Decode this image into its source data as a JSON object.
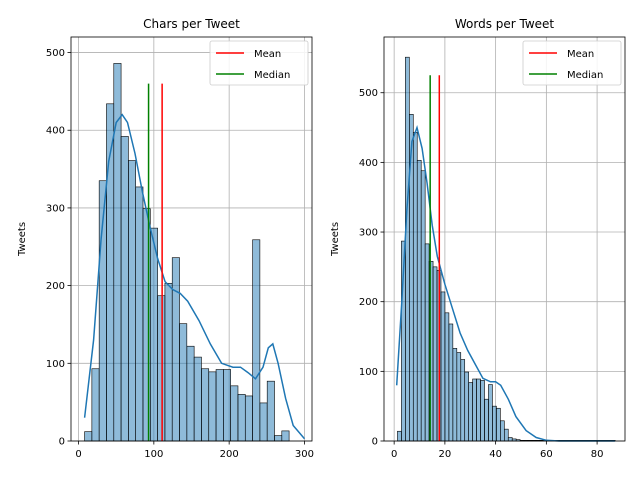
{
  "chart_data": [
    {
      "type": "histogram",
      "title": "Chars per Tweet",
      "xlabel": "",
      "ylabel": "Tweets",
      "xlim": [
        -10,
        310
      ],
      "ylim": [
        0,
        520
      ],
      "xticks": [
        0,
        100,
        200,
        300
      ],
      "yticks": [
        0,
        100,
        200,
        300,
        400,
        500
      ],
      "grid": true,
      "legend_position": "top-right",
      "bin_start": 8,
      "bin_width": 9.7,
      "values": [
        12,
        93,
        335,
        434,
        486,
        392,
        361,
        327,
        299,
        274,
        187,
        203,
        236,
        151,
        122,
        108,
        93,
        89,
        92,
        92,
        71,
        60,
        58,
        259,
        49,
        77,
        7,
        13
      ],
      "kde": {
        "x": [
          8,
          20,
          30,
          40,
          50,
          58,
          65,
          75,
          85,
          95,
          105,
          115,
          125,
          135,
          145,
          160,
          175,
          190,
          205,
          215,
          225,
          235,
          245,
          252,
          258,
          265,
          275,
          285,
          300
        ],
        "y": [
          30,
          130,
          260,
          360,
          410,
          420,
          410,
          370,
          320,
          275,
          235,
          205,
          195,
          190,
          180,
          155,
          125,
          100,
          95,
          95,
          88,
          80,
          95,
          120,
          125,
          100,
          55,
          20,
          3
        ]
      },
      "reference_lines": [
        {
          "name": "Mean",
          "x": 111,
          "ymax": 460,
          "color": "#ff0000"
        },
        {
          "name": "Median",
          "x": 93,
          "ymax": 460,
          "color": "#008000"
        }
      ],
      "bar_color": "#1f77b4",
      "line_color": "#1f77b4"
    },
    {
      "type": "histogram",
      "title": "Words per Tweet",
      "xlabel": "",
      "ylabel": "Tweets",
      "xlim": [
        -4,
        91
      ],
      "ylim": [
        0,
        580
      ],
      "xticks": [
        0,
        20,
        40,
        60,
        80
      ],
      "yticks": [
        0,
        100,
        200,
        300,
        400,
        500
      ],
      "grid": true,
      "legend_position": "top-right",
      "bin_start": 1.3,
      "bin_width": 1.56,
      "values": [
        14,
        287,
        551,
        469,
        443,
        403,
        388,
        283,
        258,
        250,
        245,
        214,
        184,
        168,
        133,
        127,
        117,
        99,
        84,
        89,
        89,
        87,
        60,
        81,
        50,
        47,
        29,
        17,
        5,
        3,
        2,
        1,
        1,
        1,
        1,
        1,
        1,
        1,
        1,
        1,
        1,
        1,
        1,
        1,
        1,
        1,
        1,
        1,
        1,
        1,
        1,
        1,
        1,
        1,
        1
      ],
      "kde": {
        "x": [
          1,
          3,
          5,
          7,
          9,
          11,
          13,
          15,
          17,
          20,
          23,
          26,
          29,
          32,
          35,
          38,
          40,
          42,
          45,
          48,
          52,
          56,
          60,
          65,
          70,
          80,
          87
        ],
        "y": [
          80,
          200,
          330,
          430,
          450,
          420,
          370,
          310,
          265,
          225,
          190,
          155,
          130,
          110,
          90,
          85,
          85,
          80,
          60,
          35,
          15,
          5,
          1,
          0,
          0,
          0,
          0
        ]
      },
      "reference_lines": [
        {
          "name": "Mean",
          "x": 17.8,
          "ymax": 525,
          "color": "#ff0000"
        },
        {
          "name": "Median",
          "x": 14.2,
          "ymax": 525,
          "color": "#008000"
        }
      ],
      "bar_color": "#1f77b4",
      "line_color": "#1f77b4"
    }
  ]
}
